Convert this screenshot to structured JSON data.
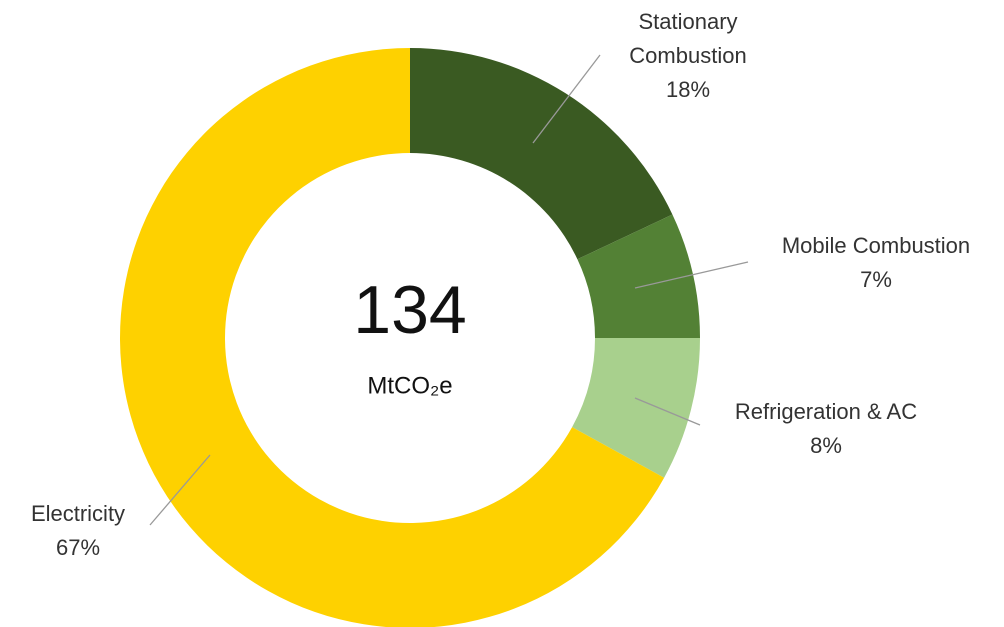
{
  "chart_data": {
    "type": "donut",
    "center_value": "134",
    "center_label": "MtCO₂e",
    "categories": [
      "Stationary Combustion",
      "Mobile Combustion",
      "Refrigeration & AC",
      "Electricity"
    ],
    "values": [
      18,
      7,
      8,
      67
    ],
    "value_labels": [
      "18%",
      "7%",
      "8%",
      "67%"
    ],
    "colors": [
      "#3a5a22",
      "#538135",
      "#a8d08d",
      "#fed100"
    ]
  }
}
